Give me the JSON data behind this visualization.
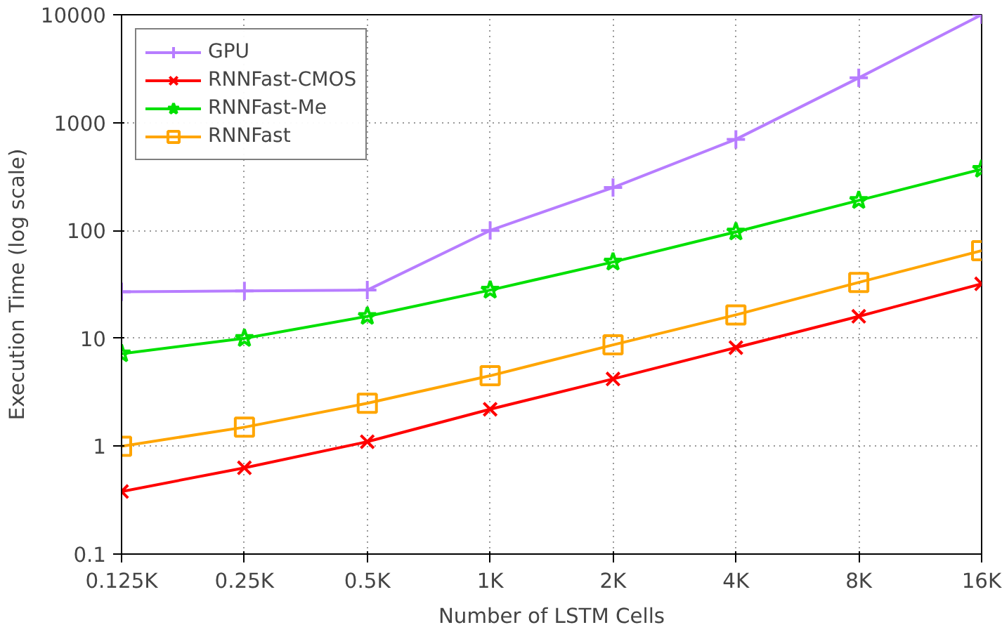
{
  "chart_data": {
    "type": "line",
    "xlabel": "Number of LSTM Cells",
    "ylabel": "Execution Time (log scale)",
    "categories": [
      "0.125K",
      "0.25K",
      "0.5K",
      "1K",
      "2K",
      "4K",
      "8K",
      "16K"
    ],
    "series": [
      {
        "name": "GPU",
        "color": "#b77dff",
        "marker": "cross",
        "values": [
          27,
          27.5,
          28,
          100,
          250,
          700,
          2600,
          10000
        ]
      },
      {
        "name": "RNNFast-CMOS",
        "color": "#ff0000",
        "marker": "x",
        "values": [
          0.38,
          0.63,
          1.1,
          2.2,
          4.2,
          8.2,
          16,
          32
        ]
      },
      {
        "name": "RNNFast-Me",
        "color": "#00e000",
        "marker": "star",
        "values": [
          7.2,
          10,
          16,
          28,
          51,
          97,
          190,
          370
        ]
      },
      {
        "name": "RNNFast",
        "color": "#ffa500",
        "marker": "square",
        "values": [
          1.0,
          1.5,
          2.5,
          4.5,
          8.7,
          16.5,
          33,
          65
        ]
      }
    ],
    "log": "y",
    "ylim": [
      0.1,
      10000
    ],
    "yticks": [
      0.1,
      1,
      10,
      100,
      1000,
      10000
    ],
    "grid": true,
    "legend": "top left",
    "line_style": "solid"
  }
}
